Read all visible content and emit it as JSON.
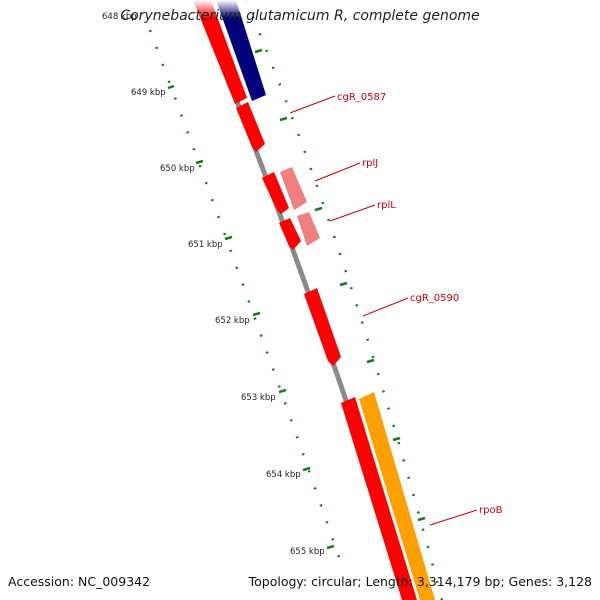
{
  "title": "Corynebacterium glutamicum R, complete genome",
  "footer": {
    "accession": "Accession: NC_009342",
    "summary": "Topology: circular; Length: 3,314,179 bp; Genes: 3,128"
  },
  "ticks": [
    "648 kbp",
    "649 kbp",
    "650 kbp",
    "651 kbp",
    "652 kbp",
    "653 kbp",
    "654 kbp",
    "655 kbp"
  ],
  "genes": [
    "cgR_0587",
    "rplJ",
    "rplL",
    "cgR_0590",
    "rpoB"
  ],
  "colors": {
    "backbone": "#8a8a8a",
    "cds": "#ff0000",
    "cds_light": "#f08080",
    "dark_blue": "#00007a",
    "orange": "#ffa000",
    "tick": "#1a7a1a",
    "label": "#cc0000"
  }
}
